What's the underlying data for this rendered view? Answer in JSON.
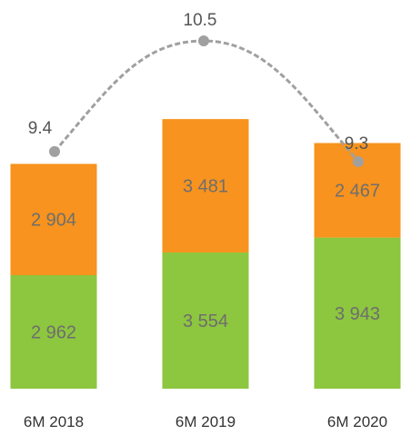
{
  "chart_data": {
    "type": "bar",
    "stacked": true,
    "categories": [
      "6M 2018",
      "6M 2019",
      "6M 2020"
    ],
    "series": [
      {
        "values": [
          2962,
          3554,
          3943
        ],
        "labels": [
          "2 962",
          "3 554",
          "3 943"
        ],
        "color": "#8dc63f"
      },
      {
        "values": [
          2904,
          3481,
          2467
        ],
        "labels": [
          "2 904",
          "3 481",
          "2 467"
        ],
        "color": "#f7931e"
      }
    ],
    "line": {
      "values": [
        9.4,
        10.5,
        9.3
      ],
      "labels": [
        "9.4",
        "10.5",
        "9.3"
      ],
      "color": "#a0a0a0",
      "style": "dashed"
    },
    "xlabel": "",
    "ylabel": "",
    "legend": "none",
    "grid": false
  }
}
